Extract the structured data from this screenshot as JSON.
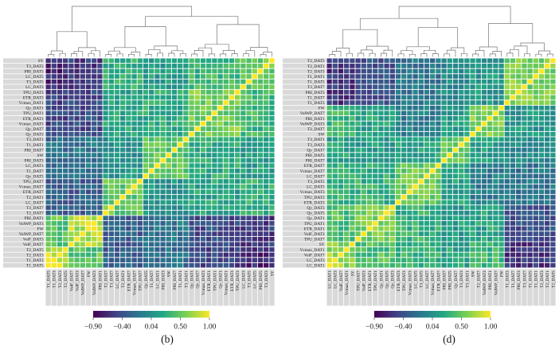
{
  "figure": {
    "type": "hierarchically clustered correlation heatmaps with dendrograms",
    "panel_count": 2
  },
  "colormap": {
    "name": "viridis",
    "positions": [
      0,
      0.2,
      0.4,
      0.6,
      0.8,
      1
    ],
    "colors": [
      "#440154",
      "#414487",
      "#2a788e",
      "#22a884",
      "#7ad151",
      "#fde725"
    ]
  },
  "chart_data": [
    {
      "type": "heatmap",
      "panel": "b",
      "caption": "(b)",
      "rows": [
        "SY",
        "T3_DAT3",
        "PRI_DAT5",
        "LC_DAT5",
        "T3_DAT5",
        "LC_DAT3",
        "TPU_DAT3",
        "ETR_DAT3",
        "Vcmax_DAT1",
        "Qy_DAT1",
        "TPU_DAT1",
        "ETR_DAT1",
        "Vcmax_DAT3",
        "Qy_DAT7",
        "Qy_DAT3",
        "T3_DAT1",
        "T1_DAT1",
        "PRI_DAT7",
        "SW",
        "PRI_DAT3",
        "LC_DAT1",
        "T1_DAT7",
        "Qy_DAT5",
        "TPU_DAT7",
        "Vcmax_DAT7",
        "ETR_DAT7",
        "T2_DAT1",
        "LC_DAT7",
        "T3_DAT7",
        "T2_DAT7",
        "PRI_DAT1",
        "VolWP_DAT3",
        "FW",
        "VolWP_DAT7",
        "VolF_DAT3",
        "VolF_DAT7",
        "T2_DAT5",
        "T2_DAT3",
        "T1_DAT3",
        "T1_DAT5"
      ],
      "columns": [
        "T1_DAT5",
        "T1_DAT3",
        "T2_DAT3",
        "T2_DAT5",
        "VolF_DAT7",
        "VolF_DAT3",
        "VolWP_DAT7",
        "FW",
        "VolWP_DAT3",
        "PRI_DAT1",
        "T2_DAT7",
        "T3_DAT7",
        "LC_DAT7",
        "T2_DAT1",
        "ETR_DAT7",
        "Vcmax_DAT7",
        "TPU_DAT7",
        "Qy_DAT5",
        "T1_DAT7",
        "LC_DAT1",
        "PRI_DAT3",
        "SW",
        "PRI_DAT7",
        "T1_DAT1",
        "T3_DAT1",
        "Qy_DAT3",
        "Qy_DAT7",
        "Vcmax_DAT3",
        "ETR_DAT1",
        "TPU_DAT1",
        "Qy_DAT1",
        "Vcmax_DAT1",
        "ETR_DAT3",
        "TPU_DAT3",
        "LC_DAT3",
        "T3_DAT5",
        "LC_DAT5",
        "PRI_DAT5",
        "T3_DAT3",
        "SY"
      ],
      "row_groups": [
        0,
        0,
        0,
        0,
        0,
        0,
        1,
        1,
        1,
        1,
        1,
        1,
        1,
        1,
        1,
        2,
        2,
        2,
        2,
        2,
        2,
        2,
        2,
        3,
        3,
        3,
        3,
        3,
        3,
        3,
        4,
        4,
        4,
        4,
        4,
        4,
        5,
        5,
        5,
        5
      ],
      "group_correlations": [
        [
          0.55,
          0.35,
          0.15,
          0.3,
          -0.55,
          -0.7
        ],
        [
          0.35,
          0.6,
          0.25,
          0.2,
          -0.45,
          -0.5
        ],
        [
          0.15,
          0.25,
          0.5,
          0.1,
          -0.15,
          -0.2
        ],
        [
          0.3,
          0.2,
          0.1,
          0.5,
          -0.35,
          -0.3
        ],
        [
          -0.55,
          -0.45,
          -0.15,
          -0.35,
          0.8,
          0.5
        ],
        [
          -0.7,
          -0.5,
          -0.2,
          -0.3,
          0.5,
          0.85
        ]
      ],
      "noise_amplitude": 0.18,
      "diagonal_value": 1.0,
      "value_domain": [
        -0.9,
        1.0
      ],
      "colorbar_ticks": [
        "−0.90",
        "−0.40",
        "0.04",
        "0.50",
        "1.00"
      ],
      "dendrogram": {
        "h": 1.0,
        "c": [
          {
            "h": 0.5,
            "c": [
              {
                "g": 5
              },
              {
                "g": 4
              }
            ]
          },
          {
            "h": 0.8,
            "c": [
              {
                "h": 0.6,
                "c": [
                  {
                    "g": 3
                  },
                  {
                    "g": 2
                  }
                ]
              },
              {
                "h": 0.64,
                "c": [
                  {
                    "g": 1
                  },
                  {
                    "g": 0
                  }
                ]
              }
            ]
          }
        ]
      }
    },
    {
      "type": "heatmap",
      "panel": "d",
      "caption": "(d)",
      "rows": [
        "T2_DAT5",
        "T2_DAT1",
        "T2_DAT3",
        "T1_DAT1",
        "T1_DAT5",
        "T3_DAT7",
        "PRI_DAT3",
        "T1_DAT7",
        "T1_DAT3",
        "FW",
        "VolWP_DAT7",
        "PRI_DAT1",
        "VolWP_DAT3",
        "T2_DAT7",
        "SW",
        "T3_DAT1",
        "T3_DAT3",
        "Qy_DAT7",
        "PRI_DAT5",
        "PRI_DAT7",
        "ETR_DAT7",
        "Vcmax_DAT7",
        "LC_DAT7",
        "T3_DAT5",
        "LC_DAT5",
        "Vcmax_DAT3",
        "TPU_DAT3",
        "ETR_DAT3",
        "Qy_DAT3",
        "Qy_DAT5",
        "Qy_DAT1",
        "TPU_DAT1",
        "ETR_DAT1",
        "VolF_DAT3",
        "TPU_DAT7",
        "SY",
        "Vcmax_DAT1",
        "VolF_DAT7",
        "LC_DAT3",
        "LC_DAT1"
      ],
      "columns": [
        "LC_DAT1",
        "LC_DAT3",
        "VolF_DAT7",
        "Vcmax_DAT1",
        "SY",
        "TPU_DAT7",
        "VolF_DAT3",
        "ETR_DAT1",
        "TPU_DAT1",
        "Qy_DAT1",
        "Qy_DAT5",
        "Qy_DAT3",
        "ETR_DAT3",
        "TPU_DAT3",
        "Vcmax_DAT3",
        "LC_DAT5",
        "T3_DAT5",
        "LC_DAT7",
        "Vcmax_DAT7",
        "ETR_DAT7",
        "PRI_DAT7",
        "PRI_DAT5",
        "Qy_DAT7",
        "T3_DAT3",
        "T3_DAT1",
        "SW",
        "T2_DAT7",
        "VolWP_DAT3",
        "PRI_DAT1",
        "VolWP_DAT7",
        "FW",
        "T1_DAT3",
        "T1_DAT7",
        "PRI_DAT3",
        "T3_DAT7",
        "T1_DAT5",
        "T1_DAT1",
        "T2_DAT3",
        "T2_DAT1",
        "T2_DAT5"
      ],
      "row_groups": [
        0,
        0,
        0,
        0,
        0,
        0,
        0,
        0,
        0,
        1,
        1,
        1,
        1,
        1,
        1,
        2,
        2,
        2,
        2,
        2,
        3,
        3,
        3,
        3,
        3,
        3,
        3,
        3,
        4,
        4,
        4,
        4,
        4,
        4,
        4,
        5,
        5,
        5,
        5,
        5
      ],
      "group_correlations": [
        [
          0.6,
          0.1,
          0.0,
          -0.15,
          -0.4,
          -0.6
        ],
        [
          0.1,
          0.65,
          0.15,
          -0.1,
          0.2,
          0.35
        ],
        [
          0.0,
          0.15,
          0.55,
          0.2,
          0.15,
          0.2
        ],
        [
          -0.15,
          -0.1,
          0.2,
          0.55,
          0.3,
          0.35
        ],
        [
          -0.4,
          0.2,
          0.15,
          0.3,
          0.6,
          0.45
        ],
        [
          -0.6,
          0.35,
          0.2,
          0.35,
          0.45,
          0.7
        ]
      ],
      "noise_amplitude": 0.18,
      "diagonal_value": 1.0,
      "value_domain": [
        -0.9,
        1.0
      ],
      "colorbar_ticks": [
        "−0.90",
        "−0.40",
        "0.04",
        "0.50",
        "1.00"
      ],
      "dendrogram": {
        "h": 1.0,
        "c": [
          {
            "h": 0.76,
            "c": [
              {
                "h": 0.54,
                "c": [
                  {
                    "g": 5
                  },
                  {
                    "g": 4
                  }
                ]
              },
              {
                "h": 0.58,
                "c": [
                  {
                    "g": 3
                  },
                  {
                    "g": 2
                  }
                ]
              }
            ]
          },
          {
            "h": 0.66,
            "c": [
              {
                "g": 1
              },
              {
                "g": 0
              }
            ]
          }
        ]
      }
    }
  ]
}
